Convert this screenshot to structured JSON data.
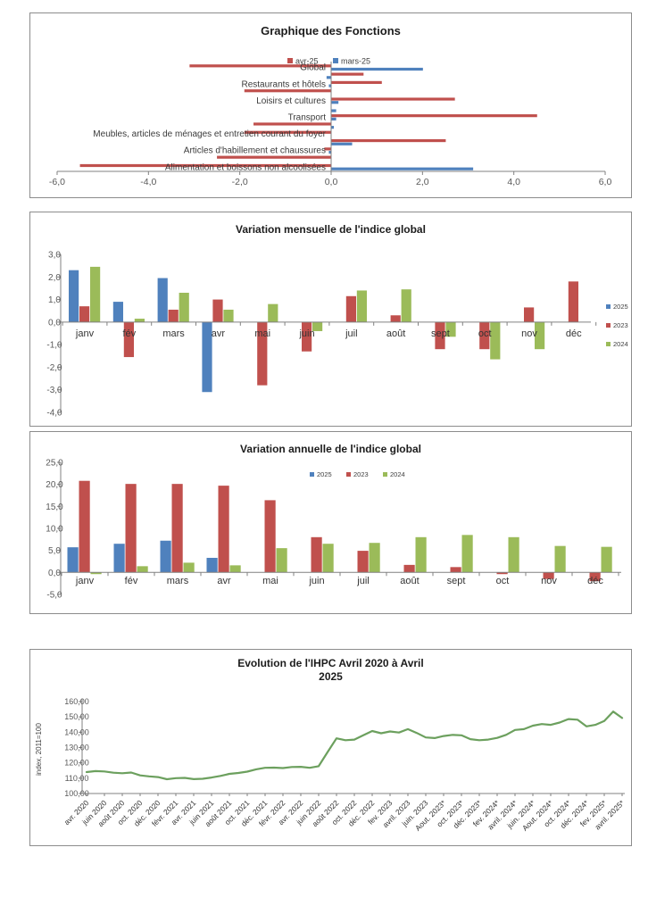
{
  "page": {
    "background": "#ffffff"
  },
  "colors": {
    "red": "#C0504D",
    "blue": "#4F81BD",
    "green": "#9BBB59",
    "line_green": "#6CA05E",
    "axis": "#808080",
    "tick_text": "#595959",
    "label_text": "#3a3a3a"
  },
  "chart_data": [
    {
      "id": "fonctions",
      "type": "bar",
      "orientation": "horizontal",
      "title": "Graphique des Fonctions",
      "xlim": [
        -6,
        6
      ],
      "xticks": [
        "-6,0",
        "-4,0",
        "-2,0",
        "0,0",
        "2,0",
        "4,0",
        "6,0"
      ],
      "legend_position": "top",
      "categories": [
        "Global",
        "",
        "Restaurants et hôtels",
        "",
        "Loisirs et cultures",
        "",
        "Transport",
        "",
        "Meubles, articles de ménages et entretien courant du foyer",
        "",
        "Articles d'habillement et chaussures",
        "",
        "Alimentation et boissons non alcoolisées"
      ],
      "series": [
        {
          "name": "avr-25",
          "color": "#C0504D",
          "values": [
            -3.1,
            0.7,
            1.1,
            -1.9,
            2.7,
            0,
            4.5,
            -1.7,
            -1.9,
            2.5,
            -0.15,
            -2.5,
            -5.5
          ]
        },
        {
          "name": "mars-25",
          "color": "#4F81BD",
          "values": [
            2.0,
            -0.1,
            -0.05,
            0,
            0.15,
            0.1,
            0.1,
            0.05,
            0,
            0.45,
            -0.05,
            0,
            3.1
          ]
        }
      ]
    },
    {
      "id": "mensuelle",
      "type": "bar",
      "orientation": "vertical",
      "title": "Variation mensuelle de l'indice global",
      "ylim": [
        -4,
        3
      ],
      "yticks": [
        "3,0",
        "2,0",
        "1,0",
        "0,0",
        "-1,0",
        "-2,0",
        "-3,0",
        "-4,0"
      ],
      "legend_position": "right",
      "categories": [
        "janv",
        "fév",
        "mars",
        "avr",
        "mai",
        "juin",
        "juil",
        "août",
        "sept",
        "oct",
        "nov",
        "déc"
      ],
      "series": [
        {
          "name": "2025",
          "color": "#4F81BD",
          "values": [
            2.3,
            0.9,
            1.95,
            -3.1,
            null,
            null,
            null,
            null,
            null,
            null,
            null,
            null
          ]
        },
        {
          "name": "2023",
          "color": "#C0504D",
          "values": [
            0.7,
            -1.55,
            0.55,
            1.0,
            -2.8,
            -1.3,
            1.15,
            0.3,
            -1.2,
            -1.2,
            0.65,
            1.8
          ]
        },
        {
          "name": "2024",
          "color": "#9BBB59",
          "values": [
            2.45,
            0.15,
            1.3,
            0.55,
            0.8,
            -0.4,
            1.4,
            1.45,
            -0.65,
            -1.65,
            -1.2,
            null
          ]
        }
      ]
    },
    {
      "id": "annuelle",
      "type": "bar",
      "orientation": "vertical",
      "title": "Variation annuelle de l'indice global",
      "ylim": [
        -5,
        25
      ],
      "yticks": [
        "25,0",
        "20,0",
        "15,0",
        "10,0",
        "5,0",
        "0,0",
        "-5,0"
      ],
      "legend_position": "top",
      "categories": [
        "janv",
        "fév",
        "mars",
        "avr",
        "mai",
        "juin",
        "juil",
        "août",
        "sept",
        "oct",
        "nov",
        "déc"
      ],
      "series": [
        {
          "name": "2025",
          "color": "#4F81BD",
          "values": [
            5.7,
            6.5,
            7.2,
            3.3,
            null,
            null,
            null,
            null,
            null,
            null,
            null,
            null
          ]
        },
        {
          "name": "2023",
          "color": "#C0504D",
          "values": [
            20.8,
            20.1,
            20.1,
            19.7,
            16.4,
            8.0,
            4.9,
            1.7,
            1.2,
            -0.4,
            -1.5,
            -2.0
          ]
        },
        {
          "name": "2024",
          "color": "#9BBB59",
          "values": [
            -0.4,
            1.4,
            2.2,
            1.6,
            5.5,
            6.5,
            6.7,
            8.0,
            8.5,
            8.0,
            6.0,
            5.8
          ]
        }
      ]
    },
    {
      "id": "ihpc",
      "type": "line",
      "title": "Evolution de l'IHPC Avril 2020 à Avril\n2025",
      "ylabel": "index, 2011=100",
      "ylim": [
        100,
        160
      ],
      "yticks": [
        "160,00",
        "150,00",
        "140,00",
        "130,00",
        "120,00",
        "110,00",
        "100,00"
      ],
      "color": "#6CA05E",
      "x_labels": [
        "avr. 2020",
        "juin 2020",
        "août 2020",
        "oct. 2020",
        "déc. 2020",
        "févr. 2021",
        "avr. 2021",
        "juin 2021",
        "août 2021",
        "oct. 2021",
        "déc. 2021",
        "févr. 2022",
        "avr. 2022",
        "juin 2022",
        "août 2022",
        "oct. 2022",
        "déc. 2022",
        "fev. 2023",
        "avril. 2023",
        "juin. 2023",
        "Aout. 2023*",
        "oct. 2023*",
        "déc. 2023*",
        "fev. 2024*",
        "avril. 2024*",
        "juin. 2024*",
        "Aout. 2024*",
        "oct. 2024*",
        "déc. 2024*",
        "fev. 2025*",
        "avril. 2025*"
      ],
      "values": [
        114.0,
        114.6,
        114.4,
        113.6,
        113.2,
        113.7,
        111.8,
        111.2,
        110.7,
        109.3,
        110.0,
        110.2,
        109.4,
        109.6,
        110.4,
        111.5,
        112.8,
        113.4,
        114.3,
        115.8,
        116.8,
        116.9,
        116.6,
        117.3,
        117.4,
        116.8,
        117.8,
        127.0,
        136.0,
        134.8,
        135.2,
        138.0,
        140.8,
        139.3,
        140.5,
        139.8,
        142.0,
        139.5,
        136.6,
        136.2,
        137.5,
        138.3,
        138.0,
        135.5,
        134.8,
        135.2,
        136.3,
        138.3,
        141.5,
        142.0,
        144.3,
        145.3,
        144.8,
        146.3,
        148.6,
        148.2,
        143.8,
        144.8,
        147.3,
        153.5,
        149.3
      ]
    }
  ]
}
